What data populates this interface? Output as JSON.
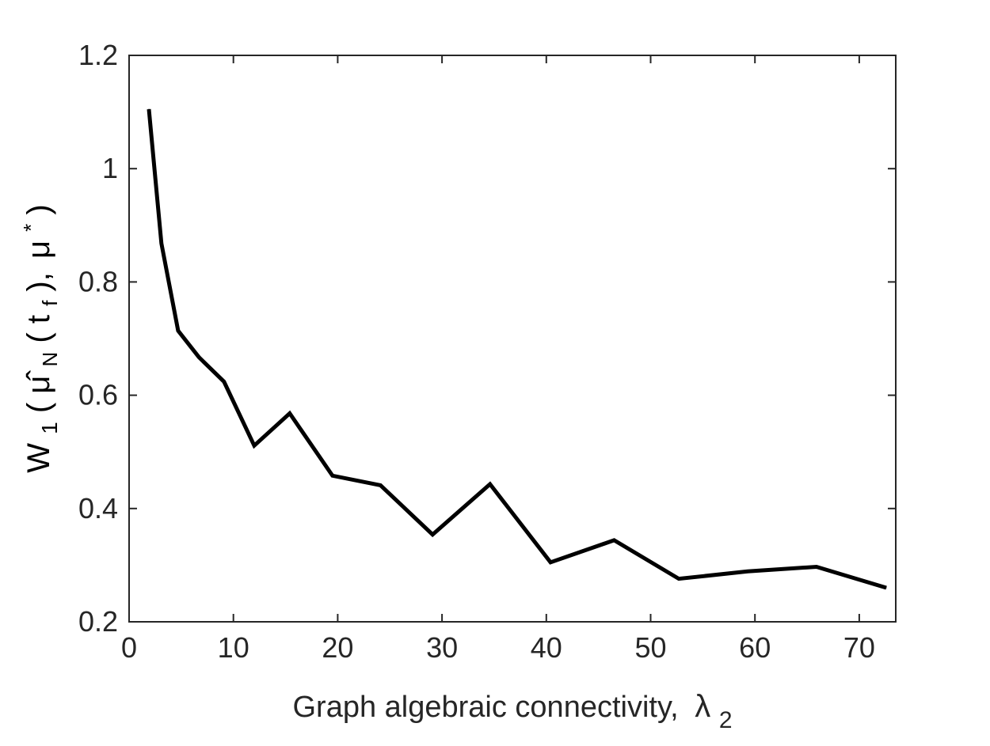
{
  "chart_data": {
    "type": "line",
    "xlabel": {
      "text": "Graph algebraic connectivity,",
      "symbol": "λ",
      "subscript": "2"
    },
    "ylabel": {
      "W": "W",
      "W_sub": "1",
      "open": "(",
      "mu_hat": "μ̂",
      "N": "N",
      "t_open": "(",
      "t": "t",
      "f": "f",
      "t_close": "),",
      "mu": "μ",
      "star": "*",
      "close": ")"
    },
    "xlim": [
      0,
      73.5
    ],
    "ylim": [
      0.2,
      1.2
    ],
    "xticks": [
      0,
      10,
      20,
      30,
      40,
      50,
      60,
      70
    ],
    "xtick_labels": [
      "0",
      "10",
      "20",
      "30",
      "40",
      "50",
      "60",
      "70"
    ],
    "yticks": [
      0.2,
      0.4,
      0.6,
      0.8,
      1.0,
      1.2
    ],
    "ytick_labels": [
      "0.2",
      "0.4",
      "0.6",
      "0.8",
      "1",
      "1.2"
    ],
    "grid": false,
    "series": [
      {
        "color": "#000000",
        "x": [
          1.9,
          3.1,
          4.7,
          6.7,
          9.1,
          12.0,
          15.4,
          19.5,
          24.1,
          29.1,
          34.6,
          40.4,
          46.5,
          52.7,
          59.3,
          65.9,
          72.6
        ],
        "y": [
          1.105,
          0.868,
          0.714,
          0.667,
          0.624,
          0.511,
          0.568,
          0.458,
          0.441,
          0.354,
          0.443,
          0.305,
          0.344,
          0.276,
          0.289,
          0.297,
          0.26
        ]
      }
    ]
  }
}
